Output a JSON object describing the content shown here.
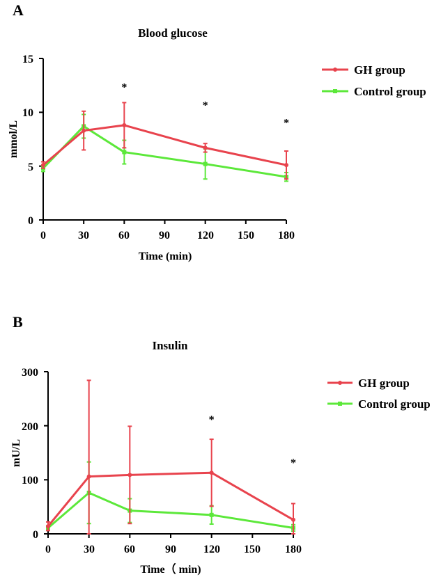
{
  "colors": {
    "gh": "#e8434d",
    "control": "#5ce83a",
    "axis": "#000000"
  },
  "chart_data": [
    {
      "panel": "A",
      "type": "line",
      "title": "Blood glucose",
      "xlabel": "Time (min)",
      "ylabel": "mmol/L",
      "x": [
        0,
        30,
        60,
        120,
        180
      ],
      "xticks": [
        0,
        30,
        60,
        90,
        120,
        150,
        180
      ],
      "xtick_labels": [
        "0",
        "30",
        "60",
        "90",
        "120",
        "150",
        "180"
      ],
      "yticks": [
        0,
        5,
        10,
        15
      ],
      "ytick_labels": [
        "0",
        "5",
        "10",
        "15"
      ],
      "xlim": [
        0,
        180
      ],
      "ylim": [
        0,
        15
      ],
      "legend_position": "top-right",
      "series": [
        {
          "name": "GH group",
          "color_key": "gh",
          "values": [
            5.1,
            8.3,
            8.8,
            6.7,
            5.1
          ],
          "err": [
            0.3,
            1.8,
            2.1,
            0.4,
            1.3
          ]
        },
        {
          "name": "Control group",
          "color_key": "control",
          "values": [
            4.8,
            8.7,
            6.3,
            5.2,
            4.0
          ],
          "err": [
            0.3,
            1.1,
            1.1,
            1.4,
            0.4
          ]
        }
      ],
      "annotations": [
        {
          "x": 60,
          "y": 12.0,
          "text": "*"
        },
        {
          "x": 120,
          "y": 10.3,
          "text": "*"
        },
        {
          "x": 180,
          "y": 8.7,
          "text": "*"
        }
      ]
    },
    {
      "panel": "B",
      "type": "line",
      "title": "Insulin",
      "xlabel": "Time（ min)",
      "ylabel": "mU/L",
      "x": [
        0,
        30,
        60,
        120,
        180
      ],
      "xticks": [
        0,
        30,
        60,
        90,
        120,
        150,
        180
      ],
      "xtick_labels": [
        "0",
        "30",
        "60",
        "90",
        "120",
        "150",
        "180"
      ],
      "yticks": [
        0,
        100,
        200,
        300
      ],
      "ytick_labels": [
        "0",
        "100",
        "200",
        "300"
      ],
      "xlim": [
        0,
        180
      ],
      "ylim": [
        0,
        300
      ],
      "legend_position": "top-right",
      "series": [
        {
          "name": "GH group",
          "color_key": "gh",
          "values": [
            14,
            106,
            109,
            113,
            26
          ],
          "err": [
            8,
            178,
            90,
            62,
            30
          ]
        },
        {
          "name": "Control group",
          "color_key": "control",
          "values": [
            11,
            76,
            43,
            35,
            11
          ],
          "err": [
            4,
            57,
            22,
            17,
            6
          ]
        }
      ],
      "annotations": [
        {
          "x": 120,
          "y": 205,
          "text": "*"
        },
        {
          "x": 180,
          "y": 125,
          "text": "*"
        }
      ]
    }
  ]
}
